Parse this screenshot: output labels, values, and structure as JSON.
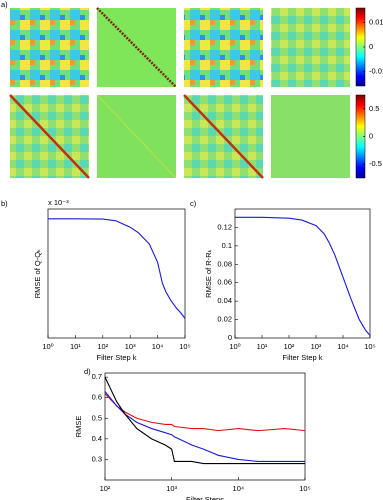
{
  "chart_data": [
    {
      "type": "heatmap",
      "label": "a)",
      "colorbars": [
        {
          "lim": [
            -0.016,
            0.016
          ],
          "ticks": [
            -0.01,
            0,
            0.01
          ]
        },
        {
          "lim": [
            -0.75,
            0.75
          ],
          "ticks": [
            -0.5,
            0,
            0.5
          ]
        }
      ]
    },
    {
      "type": "line",
      "label": "b)",
      "y_multiplier": "x 10⁻³",
      "xlabel": "Filter Step k",
      "ylabel": "RMSE of Q-Qₖ",
      "xscale": "log",
      "xlim": [
        1,
        100000
      ],
      "xticks": [
        {
          "value": 1,
          "label": "10⁰"
        },
        {
          "value": 10,
          "label": "10¹"
        },
        {
          "value": 100,
          "label": "10²"
        },
        {
          "value": 1000,
          "label": "10³"
        },
        {
          "value": 10000,
          "label": "10⁴"
        },
        {
          "value": 100000,
          "label": "10⁵"
        }
      ],
      "ylim": [
        0,
        4.6
      ],
      "x": [
        1,
        10,
        100,
        300,
        1000,
        2000,
        5000,
        10000,
        15000,
        20000,
        30000,
        50000,
        70000,
        100000
      ],
      "series": [
        {
          "color": "#1a1ad6",
          "values": [
            4.25,
            4.25,
            4.24,
            4.18,
            3.95,
            3.75,
            3.35,
            2.7,
            1.95,
            1.65,
            1.35,
            1.05,
            0.9,
            0.7
          ]
        }
      ]
    },
    {
      "type": "line",
      "label": "c)",
      "xlabel": "Filter Step k",
      "ylabel": "RMSE of R-Rₖ",
      "xscale": "log",
      "xlim": [
        1,
        100000
      ],
      "xticks": [
        {
          "value": 1,
          "label": "10⁰"
        },
        {
          "value": 10,
          "label": "10¹"
        },
        {
          "value": 100,
          "label": "10²"
        },
        {
          "value": 1000,
          "label": "10³"
        },
        {
          "value": 10000,
          "label": "10⁴"
        },
        {
          "value": 100000,
          "label": "10⁵"
        }
      ],
      "ylim": [
        0,
        0.14
      ],
      "yticks": [
        0,
        0.02,
        0.04,
        0.06,
        0.08,
        0.1,
        0.12
      ],
      "x": [
        1,
        10,
        100,
        300,
        1000,
        2000,
        3000,
        5000,
        10000,
        20000,
        40000,
        70000,
        100000
      ],
      "series": [
        {
          "color": "#1a1ad6",
          "values": [
            0.131,
            0.131,
            0.13,
            0.128,
            0.122,
            0.113,
            0.104,
            0.09,
            0.066,
            0.042,
            0.02,
            0.008,
            0.003
          ]
        }
      ]
    },
    {
      "type": "line",
      "label": "d)",
      "xlabel": "Filter Steps",
      "ylabel": "RMSE",
      "xscale": "log",
      "xlim": [
        100,
        100000
      ],
      "xticks": [
        {
          "value": 100,
          "label": "10²"
        },
        {
          "value": 1000,
          "label": "10³"
        },
        {
          "value": 10000,
          "label": "10⁴"
        },
        {
          "value": 100000,
          "label": "10⁵"
        }
      ],
      "ylim": [
        0.2,
        0.72
      ],
      "yticks": [
        0.3,
        0.4,
        0.5,
        0.6,
        0.7
      ],
      "x": [
        100,
        150,
        200,
        300,
        500,
        800,
        1000,
        1100,
        2000,
        3000,
        5000,
        10000,
        20000,
        50000,
        100000
      ],
      "series": [
        {
          "color": "#e0101a",
          "values": [
            0.62,
            0.56,
            0.53,
            0.5,
            0.48,
            0.47,
            0.47,
            0.46,
            0.45,
            0.45,
            0.44,
            0.45,
            0.44,
            0.45,
            0.44
          ]
        },
        {
          "color": "#1a1ad6",
          "values": [
            0.63,
            0.56,
            0.52,
            0.48,
            0.45,
            0.43,
            0.42,
            0.41,
            0.37,
            0.35,
            0.32,
            0.3,
            0.29,
            0.29,
            0.29
          ]
        },
        {
          "color": "#000000",
          "values": [
            0.7,
            0.58,
            0.52,
            0.45,
            0.4,
            0.37,
            0.35,
            0.29,
            0.29,
            0.28,
            0.28,
            0.28,
            0.28,
            0.28,
            0.28
          ]
        }
      ]
    }
  ]
}
